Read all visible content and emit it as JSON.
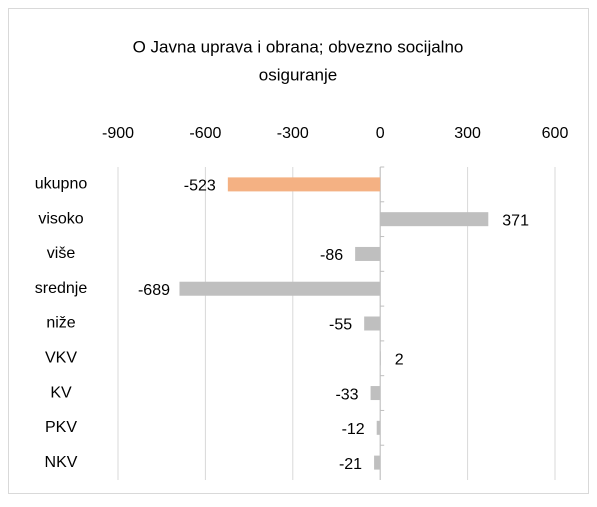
{
  "chart_data": {
    "type": "hbar",
    "title": [
      "O  Javna uprava i obrana; obvezno socijalno",
      "osiguranje"
    ],
    "categories": [
      "ukupno",
      "visoko",
      "više",
      "srednje",
      "niže",
      "VKV",
      "KV",
      "PKV",
      "NKV"
    ],
    "values": [
      -523,
      371,
      -86,
      -689,
      -55,
      2,
      -33,
      -12,
      -21
    ],
    "colors": [
      "#f4b183",
      "#bfbfbf",
      "#bfbfbf",
      "#bfbfbf",
      "#bfbfbf",
      "#bfbfbf",
      "#bfbfbf",
      "#bfbfbf",
      "#bfbfbf"
    ],
    "xlim": [
      -900,
      600
    ],
    "xticks": [
      -900,
      -600,
      -300,
      0,
      300,
      600
    ],
    "grid": true
  }
}
